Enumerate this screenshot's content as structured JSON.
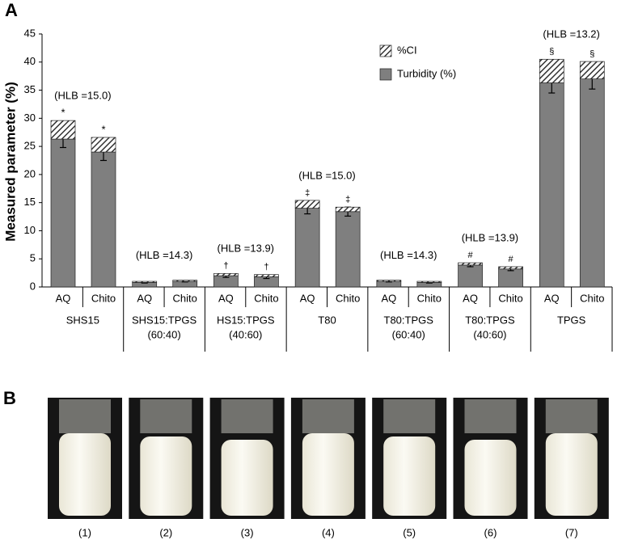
{
  "chart_data": {
    "type": "stacked-bar",
    "panel_labels": [
      "A",
      "B"
    ],
    "y_label": "Measured parameter (%)",
    "ylim": [
      0,
      45
    ],
    "yticks": [
      0,
      5,
      10,
      15,
      20,
      25,
      30,
      35,
      40,
      45
    ],
    "categories": [
      "AQ",
      "Chito",
      "AQ",
      "Chito",
      "AQ",
      "Chito",
      "AQ",
      "Chito",
      "AQ",
      "Chito",
      "AQ",
      "Chito",
      "AQ",
      "Chito"
    ],
    "groups": [
      {
        "label": [
          "SHS15"
        ],
        "hlb": "(HLB =15.0)"
      },
      {
        "label": [
          "SHS15:TPGS",
          "(60:40)"
        ],
        "hlb": "(HLB =14.3)"
      },
      {
        "label": [
          "HS15:TPGS",
          "(40:60)"
        ],
        "hlb": "(HLB =13.9)"
      },
      {
        "label": [
          "T80"
        ],
        "hlb": "(HLB =15.0)"
      },
      {
        "label": [
          "T80:TPGS",
          "(60:40)"
        ],
        "hlb": "(HLB =14.3)"
      },
      {
        "label": [
          "T80:TPGS",
          "(40:60)"
        ],
        "hlb": "(HLB =13.9)"
      },
      {
        "label": [
          "TPGS"
        ],
        "hlb": "(HLB =13.2)"
      }
    ],
    "markers": [
      "*",
      "*",
      null,
      null,
      "†",
      "†",
      "‡",
      "‡",
      null,
      null,
      "#",
      "#",
      "§",
      "§"
    ],
    "series": [
      {
        "name": "Turbidity (%)",
        "color": "#7f7f7f",
        "values": [
          26.3,
          24.0,
          0.8,
          1.0,
          2.0,
          1.8,
          14.0,
          13.4,
          1.0,
          0.8,
          3.9,
          3.2,
          36.3,
          37.0
        ],
        "errors": [
          1.5,
          1.5,
          0.1,
          0.1,
          0.3,
          0.3,
          1.0,
          0.8,
          0.1,
          0.1,
          0.3,
          0.3,
          1.8,
          1.8
        ]
      },
      {
        "name": "%CI",
        "color": "#333333",
        "hatch": true,
        "values": [
          3.3,
          2.6,
          0.2,
          0.2,
          0.4,
          0.4,
          1.4,
          0.8,
          0.2,
          0.2,
          0.4,
          0.4,
          4.2,
          3.1
        ]
      }
    ],
    "legend": "upper-right",
    "photo_labels": [
      "(1)",
      "(2)",
      "(3)",
      "(4)",
      "(5)",
      "(6)",
      "(7)"
    ]
  }
}
